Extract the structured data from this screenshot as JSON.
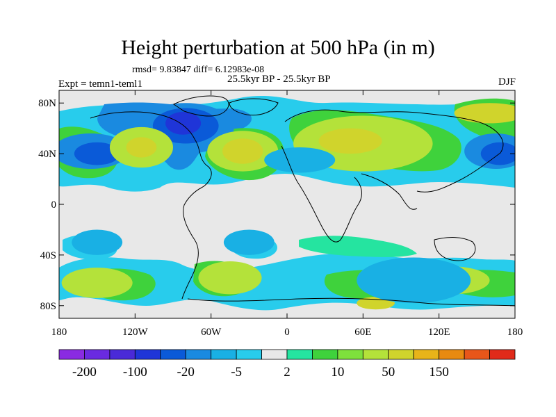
{
  "chart_data": {
    "type": "contour-map",
    "title": "Height perturbation at 500 hPa (in m)",
    "stats_line": "rmsd= 9.83847 diff= 6.12983e-08",
    "subtitle": "25.5kyr BP - 25.5kyr BP",
    "left_label": "Expt = temn1-teml1",
    "right_label": "DJF",
    "projection": "cylindrical-equidistant",
    "lon_range": [
      -180,
      180
    ],
    "lat_range": [
      -90,
      90
    ],
    "lat_ticks": [
      {
        "value": 80,
        "label": "80N"
      },
      {
        "value": 40,
        "label": "40N"
      },
      {
        "value": 0,
        "label": "0"
      },
      {
        "value": -40,
        "label": "40S"
      },
      {
        "value": -80,
        "label": "80S"
      }
    ],
    "lon_ticks": [
      {
        "value": -180,
        "label": "180"
      },
      {
        "value": -120,
        "label": "120W"
      },
      {
        "value": -60,
        "label": "60W"
      },
      {
        "value": 0,
        "label": "0"
      },
      {
        "value": 60,
        "label": "60E"
      },
      {
        "value": 120,
        "label": "120E"
      },
      {
        "value": 180,
        "label": "180"
      }
    ],
    "colorbar": {
      "colors": [
        "#8a2be2",
        "#6a2ae0",
        "#4a2ad8",
        "#1f35d8",
        "#0a5ad8",
        "#1a8ae0",
        "#19b0e4",
        "#28ccec",
        "#e8e8e8",
        "#25e4a0",
        "#3fd23c",
        "#7ee03c",
        "#b4e23a",
        "#d0d42c",
        "#e8b419",
        "#e88a10",
        "#e8561a",
        "#e02a1a"
      ],
      "labels": [
        {
          "index": 1,
          "label": "-200"
        },
        {
          "index": 3,
          "label": "-100"
        },
        {
          "index": 5,
          "label": "-20"
        },
        {
          "index": 7,
          "label": "-5"
        },
        {
          "index": 9,
          "label": "2"
        },
        {
          "index": 11,
          "label": "10"
        },
        {
          "index": 13,
          "label": "50"
        },
        {
          "index": 15,
          "label": "150"
        }
      ]
    },
    "anomaly_blobs": [
      {
        "lon": -155,
        "lat": 42,
        "rlon": 30,
        "rlat": 14,
        "level": 5,
        "color": "#1a8ae0"
      },
      {
        "lon": -150,
        "lat": 40,
        "rlon": 18,
        "rlat": 9,
        "level": 4,
        "color": "#0a5ad8"
      },
      {
        "lon": 165,
        "lat": 42,
        "rlon": 25,
        "rlat": 14,
        "level": 5,
        "color": "#1a8ae0"
      },
      {
        "lon": 168,
        "lat": 40,
        "rlon": 15,
        "rlat": 9,
        "level": 4,
        "color": "#0a5ad8"
      },
      {
        "lon": -80,
        "lat": 60,
        "rlon": 38,
        "rlat": 20,
        "level": 5,
        "color": "#1a8ae0"
      },
      {
        "lon": -80,
        "lat": 62,
        "rlon": 26,
        "rlat": 14,
        "level": 4,
        "color": "#0a5ad8"
      },
      {
        "lon": -82,
        "lat": 64,
        "rlon": 14,
        "rlat": 9,
        "level": 3,
        "color": "#1f35d8"
      },
      {
        "lon": -115,
        "lat": 45,
        "rlon": 25,
        "rlat": 16,
        "level": 12,
        "color": "#b4e23a"
      },
      {
        "lon": -115,
        "lat": 45,
        "rlon": 12,
        "rlat": 8,
        "level": 13,
        "color": "#d0d42c"
      },
      {
        "lon": -35,
        "lat": 42,
        "rlon": 28,
        "rlat": 16,
        "level": 12,
        "color": "#b4e23a"
      },
      {
        "lon": -35,
        "lat": 42,
        "rlon": 16,
        "rlat": 10,
        "level": 13,
        "color": "#d0d42c"
      },
      {
        "lon": 60,
        "lat": 48,
        "rlon": 55,
        "rlat": 22,
        "level": 12,
        "color": "#b4e23a"
      },
      {
        "lon": 50,
        "lat": 50,
        "rlon": 25,
        "rlat": 10,
        "level": 13,
        "color": "#d0d42c"
      },
      {
        "lon": 160,
        "lat": 72,
        "rlon": 28,
        "rlat": 8,
        "level": 13,
        "color": "#d0d42c"
      },
      {
        "lon": 10,
        "lat": 35,
        "rlon": 28,
        "rlat": 10,
        "level": 6,
        "color": "#19b0e4"
      },
      {
        "lon": -45,
        "lat": -58,
        "rlon": 25,
        "rlat": 13,
        "level": 12,
        "color": "#b4e23a"
      },
      {
        "lon": -150,
        "lat": -62,
        "rlon": 28,
        "rlat": 12,
        "level": 12,
        "color": "#b4e23a"
      },
      {
        "lon": 130,
        "lat": -60,
        "rlon": 30,
        "rlat": 11,
        "level": 12,
        "color": "#b4e23a"
      },
      {
        "lon": 70,
        "lat": -78,
        "rlon": 15,
        "rlat": 5,
        "level": 13,
        "color": "#d0d42c"
      },
      {
        "lon": 100,
        "lat": -60,
        "rlon": 45,
        "rlat": 18,
        "level": 6,
        "color": "#19b0e4"
      },
      {
        "lon": -150,
        "lat": -30,
        "rlon": 20,
        "rlat": 10,
        "level": 6,
        "color": "#19b0e4"
      },
      {
        "lon": -30,
        "lat": -30,
        "rlon": 20,
        "rlat": 10,
        "level": 6,
        "color": "#19b0e4"
      }
    ]
  }
}
